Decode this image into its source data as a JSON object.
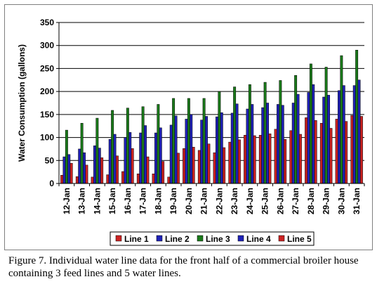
{
  "chart_data": {
    "type": "bar",
    "ylabel": "Water Consumption (gallons)",
    "xlabel": "",
    "ylim": [
      0,
      350
    ],
    "yticks": [
      0,
      50,
      100,
      150,
      200,
      250,
      300,
      350
    ],
    "grid": "horizontal",
    "legend_position": "bottom",
    "categories": [
      "12-Jan",
      "13-Jan",
      "14-Jan",
      "15-Jan",
      "16-Jan",
      "17-Jan",
      "18-Jan",
      "19-Jan",
      "20-Jan",
      "21-Jan",
      "22-Jan",
      "23-Jan",
      "24-Jan",
      "25-Jan",
      "26-Jan",
      "27-Jan",
      "28-Jan",
      "29-Jan",
      "30-Jan",
      "31-Jan"
    ],
    "series": [
      {
        "name": "Line 1",
        "color": "#cc2222",
        "values": [
          18,
          15,
          14,
          19,
          26,
          21,
          21,
          14,
          76,
          72,
          67,
          90,
          105,
          105,
          118,
          115,
          143,
          131,
          140,
          148
        ]
      },
      {
        "name": "Line 2",
        "color": "#1f22b8",
        "values": [
          58,
          75,
          82,
          96,
          100,
          110,
          110,
          127,
          140,
          138,
          145,
          153,
          162,
          165,
          172,
          175,
          198,
          188,
          202,
          213
        ]
      },
      {
        "name": "Line 3",
        "color": "#1a7a1a",
        "values": [
          116,
          131,
          142,
          159,
          164,
          167,
          172,
          185,
          185,
          185,
          200,
          210,
          215,
          220,
          224,
          235,
          260,
          253,
          278,
          290
        ]
      },
      {
        "name": "Line 4",
        "color": "#1f22b8",
        "values": [
          63,
          67,
          77,
          107,
          111,
          126,
          121,
          147,
          150,
          146,
          154,
          173,
          172,
          175,
          170,
          194,
          215,
          192,
          213,
          225
        ]
      },
      {
        "name": "Line 5",
        "color": "#cc2222",
        "values": [
          44,
          40,
          56,
          60,
          76,
          58,
          48,
          66,
          79,
          86,
          78,
          95,
          104,
          108,
          96,
          107,
          137,
          120,
          135,
          146
        ]
      }
    ]
  },
  "caption": "Figure 7.  Individual water line data for the front half of a commercial broiler house containing 3 feed lines and 5 water lines."
}
